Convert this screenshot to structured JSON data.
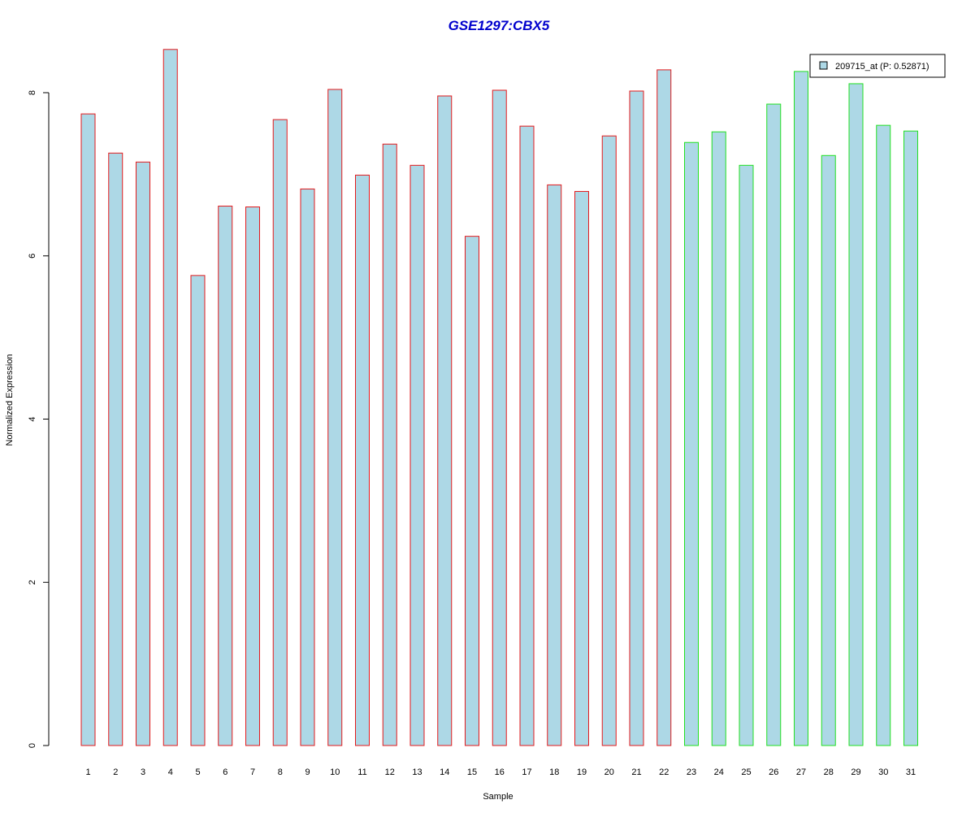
{
  "chart_data": {
    "type": "bar",
    "title": "GSE1297:CBX5",
    "xlabel": "Sample",
    "ylabel": "Normalized Expression",
    "ylim": [
      0,
      8.6
    ],
    "yticks": [
      0,
      2,
      4,
      6,
      8
    ],
    "ytick_labels": [
      "0",
      "2",
      "4",
      "6",
      "8"
    ],
    "categories": [
      "1",
      "2",
      "3",
      "4",
      "5",
      "6",
      "7",
      "8",
      "9",
      "10",
      "11",
      "12",
      "13",
      "14",
      "15",
      "16",
      "17",
      "18",
      "19",
      "20",
      "21",
      "22",
      "23",
      "24",
      "25",
      "26",
      "27",
      "28",
      "29",
      "30",
      "31"
    ],
    "series": [
      {
        "name": "209715_at (P: 0.52871)",
        "values": [
          7.74,
          7.26,
          7.15,
          8.53,
          5.76,
          6.61,
          6.6,
          7.67,
          6.82,
          8.04,
          6.99,
          7.37,
          7.11,
          7.96,
          6.24,
          8.03,
          7.59,
          6.87,
          6.79,
          7.47,
          8.02,
          8.28,
          7.39,
          7.52,
          7.11,
          7.86,
          8.26,
          7.23,
          8.11,
          7.6,
          7.53
        ]
      }
    ],
    "group_outline": [
      "#e31a1c",
      "#e31a1c",
      "#e31a1c",
      "#e31a1c",
      "#e31a1c",
      "#e31a1c",
      "#e31a1c",
      "#e31a1c",
      "#e31a1c",
      "#e31a1c",
      "#e31a1c",
      "#e31a1c",
      "#e31a1c",
      "#e31a1c",
      "#e31a1c",
      "#e31a1c",
      "#e31a1c",
      "#e31a1c",
      "#e31a1c",
      "#e31a1c",
      "#e31a1c",
      "#e31a1c",
      "#22e022",
      "#22e022",
      "#22e022",
      "#22e022",
      "#22e022",
      "#22e022",
      "#22e022",
      "#22e022",
      "#22e022"
    ],
    "legend_position": "top-right",
    "grid": false
  },
  "colors": {
    "bar_fill": "#add8e6",
    "title": "#0000cd",
    "axis": "#000000"
  }
}
